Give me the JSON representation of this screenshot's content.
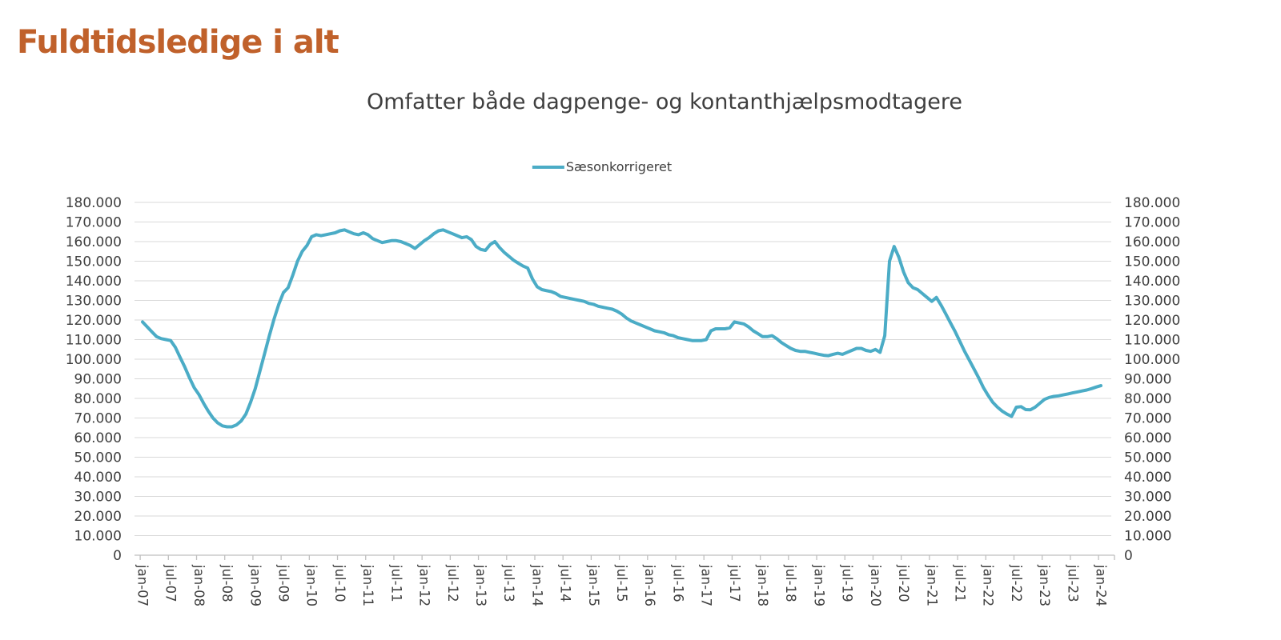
{
  "header": {
    "title": "Fuldtidsledige i alt"
  },
  "chart": {
    "subtitle": "Omfatter både dagpenge- og kontanthjælpsmodtagere",
    "legend_label": "Sæsonkorrigeret",
    "colors": {
      "series": "#4BACC6",
      "title": "#C0612B",
      "text": "#3F3F3F",
      "gridline": "#D9D9D9",
      "axis_line": "#BFBFBF"
    }
  },
  "chart_data": {
    "type": "line",
    "title": "Omfatter både dagpenge- og kontanthjælpsmodtagere",
    "legend_position": "top-center",
    "grid": "horizontal",
    "ylim": [
      0,
      180000
    ],
    "y_tick_step": 10000,
    "y_axis_sides": "both",
    "y_tick_labels": [
      "0",
      "10.000",
      "20.000",
      "30.000",
      "40.000",
      "50.000",
      "60.000",
      "70.000",
      "80.000",
      "90.000",
      "100.000",
      "110.000",
      "120.000",
      "130.000",
      "140.000",
      "150.000",
      "160.000",
      "170.000",
      "180.000"
    ],
    "x_start": "jan-07",
    "x_end": "jan-24",
    "x_tick_every_months": 6,
    "x_tick_labels": [
      "jan-07",
      "jul-07",
      "jan-08",
      "jul-08",
      "jan-09",
      "jul-09",
      "jan-10",
      "jul-10",
      "jan-11",
      "jul-11",
      "jan-12",
      "jul-12",
      "jan-13",
      "jul-13",
      "jan-14",
      "jul-14",
      "jan-15",
      "jul-15",
      "jan-16",
      "jul-16",
      "jan-17",
      "jul-17",
      "jan-18",
      "jul-18",
      "jan-19",
      "jul-19",
      "jan-20",
      "jul-20",
      "jan-21",
      "jul-21",
      "jan-22",
      "jul-22",
      "jan-23",
      "jul-23",
      "jan-24"
    ],
    "series": [
      {
        "name": "Sæsonkorrigeret",
        "color": "#4BACC6",
        "frequency": "monthly",
        "values": [
          119000,
          116500,
          114000,
          111500,
          110500,
          110000,
          109500,
          106000,
          101000,
          96000,
          90500,
          85500,
          82000,
          77500,
          73500,
          70000,
          67500,
          66000,
          65500,
          65500,
          66500,
          68500,
          72000,
          78000,
          85000,
          94000,
          103000,
          112000,
          120500,
          128000,
          134000,
          136500,
          143000,
          150000,
          155000,
          158000,
          162500,
          163500,
          163000,
          163500,
          164000,
          164500,
          165500,
          166000,
          165000,
          164000,
          163500,
          164500,
          163500,
          161500,
          160500,
          159500,
          160000,
          160500,
          160500,
          160000,
          159000,
          158000,
          156500,
          158500,
          160500,
          162000,
          164000,
          165500,
          166000,
          165000,
          164000,
          163000,
          162000,
          162500,
          161000,
          157500,
          156000,
          155500,
          158500,
          160000,
          157000,
          154500,
          152500,
          150500,
          149000,
          147500,
          146500,
          141000,
          137000,
          135500,
          135000,
          134500,
          133500,
          132000,
          131500,
          131000,
          130500,
          130000,
          129500,
          128500,
          128000,
          127000,
          126500,
          126000,
          125500,
          124500,
          123000,
          121000,
          119500,
          118500,
          117500,
          116500,
          115500,
          114500,
          114000,
          113500,
          112500,
          112000,
          111000,
          110500,
          110000,
          109500,
          109500,
          109500,
          110000,
          114500,
          115500,
          115500,
          115500,
          116000,
          119000,
          118500,
          118000,
          116500,
          114500,
          113000,
          111500,
          111500,
          112000,
          110500,
          108500,
          107000,
          105500,
          104500,
          104000,
          104000,
          103500,
          103000,
          102500,
          102000,
          101800,
          102500,
          103000,
          102500,
          103500,
          104500,
          105500,
          105500,
          104500,
          104000,
          105000,
          103500,
          112000,
          150000,
          157500,
          152000,
          144500,
          139000,
          136500,
          135500,
          133500,
          131500,
          129500,
          131500,
          127500,
          123000,
          118500,
          114000,
          109000,
          104000,
          99500,
          95000,
          90500,
          85500,
          81500,
          78000,
          75500,
          73500,
          72000,
          70800,
          75500,
          75800,
          74300,
          74200,
          75500,
          77500,
          79500,
          80500,
          81000,
          81300,
          81800,
          82300,
          82800,
          83300,
          83800,
          84300,
          85000,
          85800,
          86500
        ]
      }
    ]
  }
}
